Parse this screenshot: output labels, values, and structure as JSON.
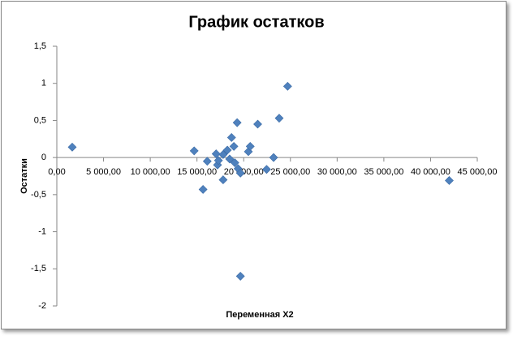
{
  "chart_data": {
    "type": "scatter",
    "title": "График остатков",
    "xlabel": "Переменная X2",
    "ylabel": "Остатки",
    "color": "#4f81bd",
    "x": [
      1650,
      14700,
      15650,
      16100,
      17050,
      17200,
      17300,
      17800,
      17800,
      18250,
      18500,
      18700,
      18950,
      19050,
      19300,
      19400,
      19650,
      19650,
      20500,
      20700,
      21500,
      22450,
      23200,
      23800,
      24700,
      42000
    ],
    "values": [
      0.14,
      0.09,
      -0.43,
      -0.05,
      0.05,
      -0.1,
      -0.04,
      0.04,
      -0.3,
      0.1,
      -0.02,
      0.27,
      0.15,
      -0.07,
      0.47,
      -0.15,
      -0.21,
      -1.6,
      0.08,
      0.15,
      0.45,
      -0.16,
      0.0,
      0.53,
      0.96,
      -0.31
    ],
    "xlim": [
      0,
      45000
    ],
    "xticks": [
      {
        "value": 0,
        "label": "0,00"
      },
      {
        "value": 5000,
        "label": "5 000,00"
      },
      {
        "value": 10000,
        "label": "10 000,00"
      },
      {
        "value": 15000,
        "label": "15 000,00"
      },
      {
        "value": 20000,
        "label": "20 000,00"
      },
      {
        "value": 25000,
        "label": "25 000,00"
      },
      {
        "value": 30000,
        "label": "30 000,00"
      },
      {
        "value": 35000,
        "label": "35 000,00"
      },
      {
        "value": 40000,
        "label": "40 000,00"
      },
      {
        "value": 45000,
        "label": "45 000,00"
      }
    ],
    "ylim": [
      -2,
      1.5
    ],
    "yticks": [
      -2,
      {
        "value": -1.5,
        "label": "-1,5"
      },
      -1,
      {
        "value": -0.5,
        "label": "-0,5"
      },
      0,
      {
        "value": 0.5,
        "label": "0,5"
      },
      1,
      {
        "value": 1.5,
        "label": "1,5"
      }
    ]
  }
}
